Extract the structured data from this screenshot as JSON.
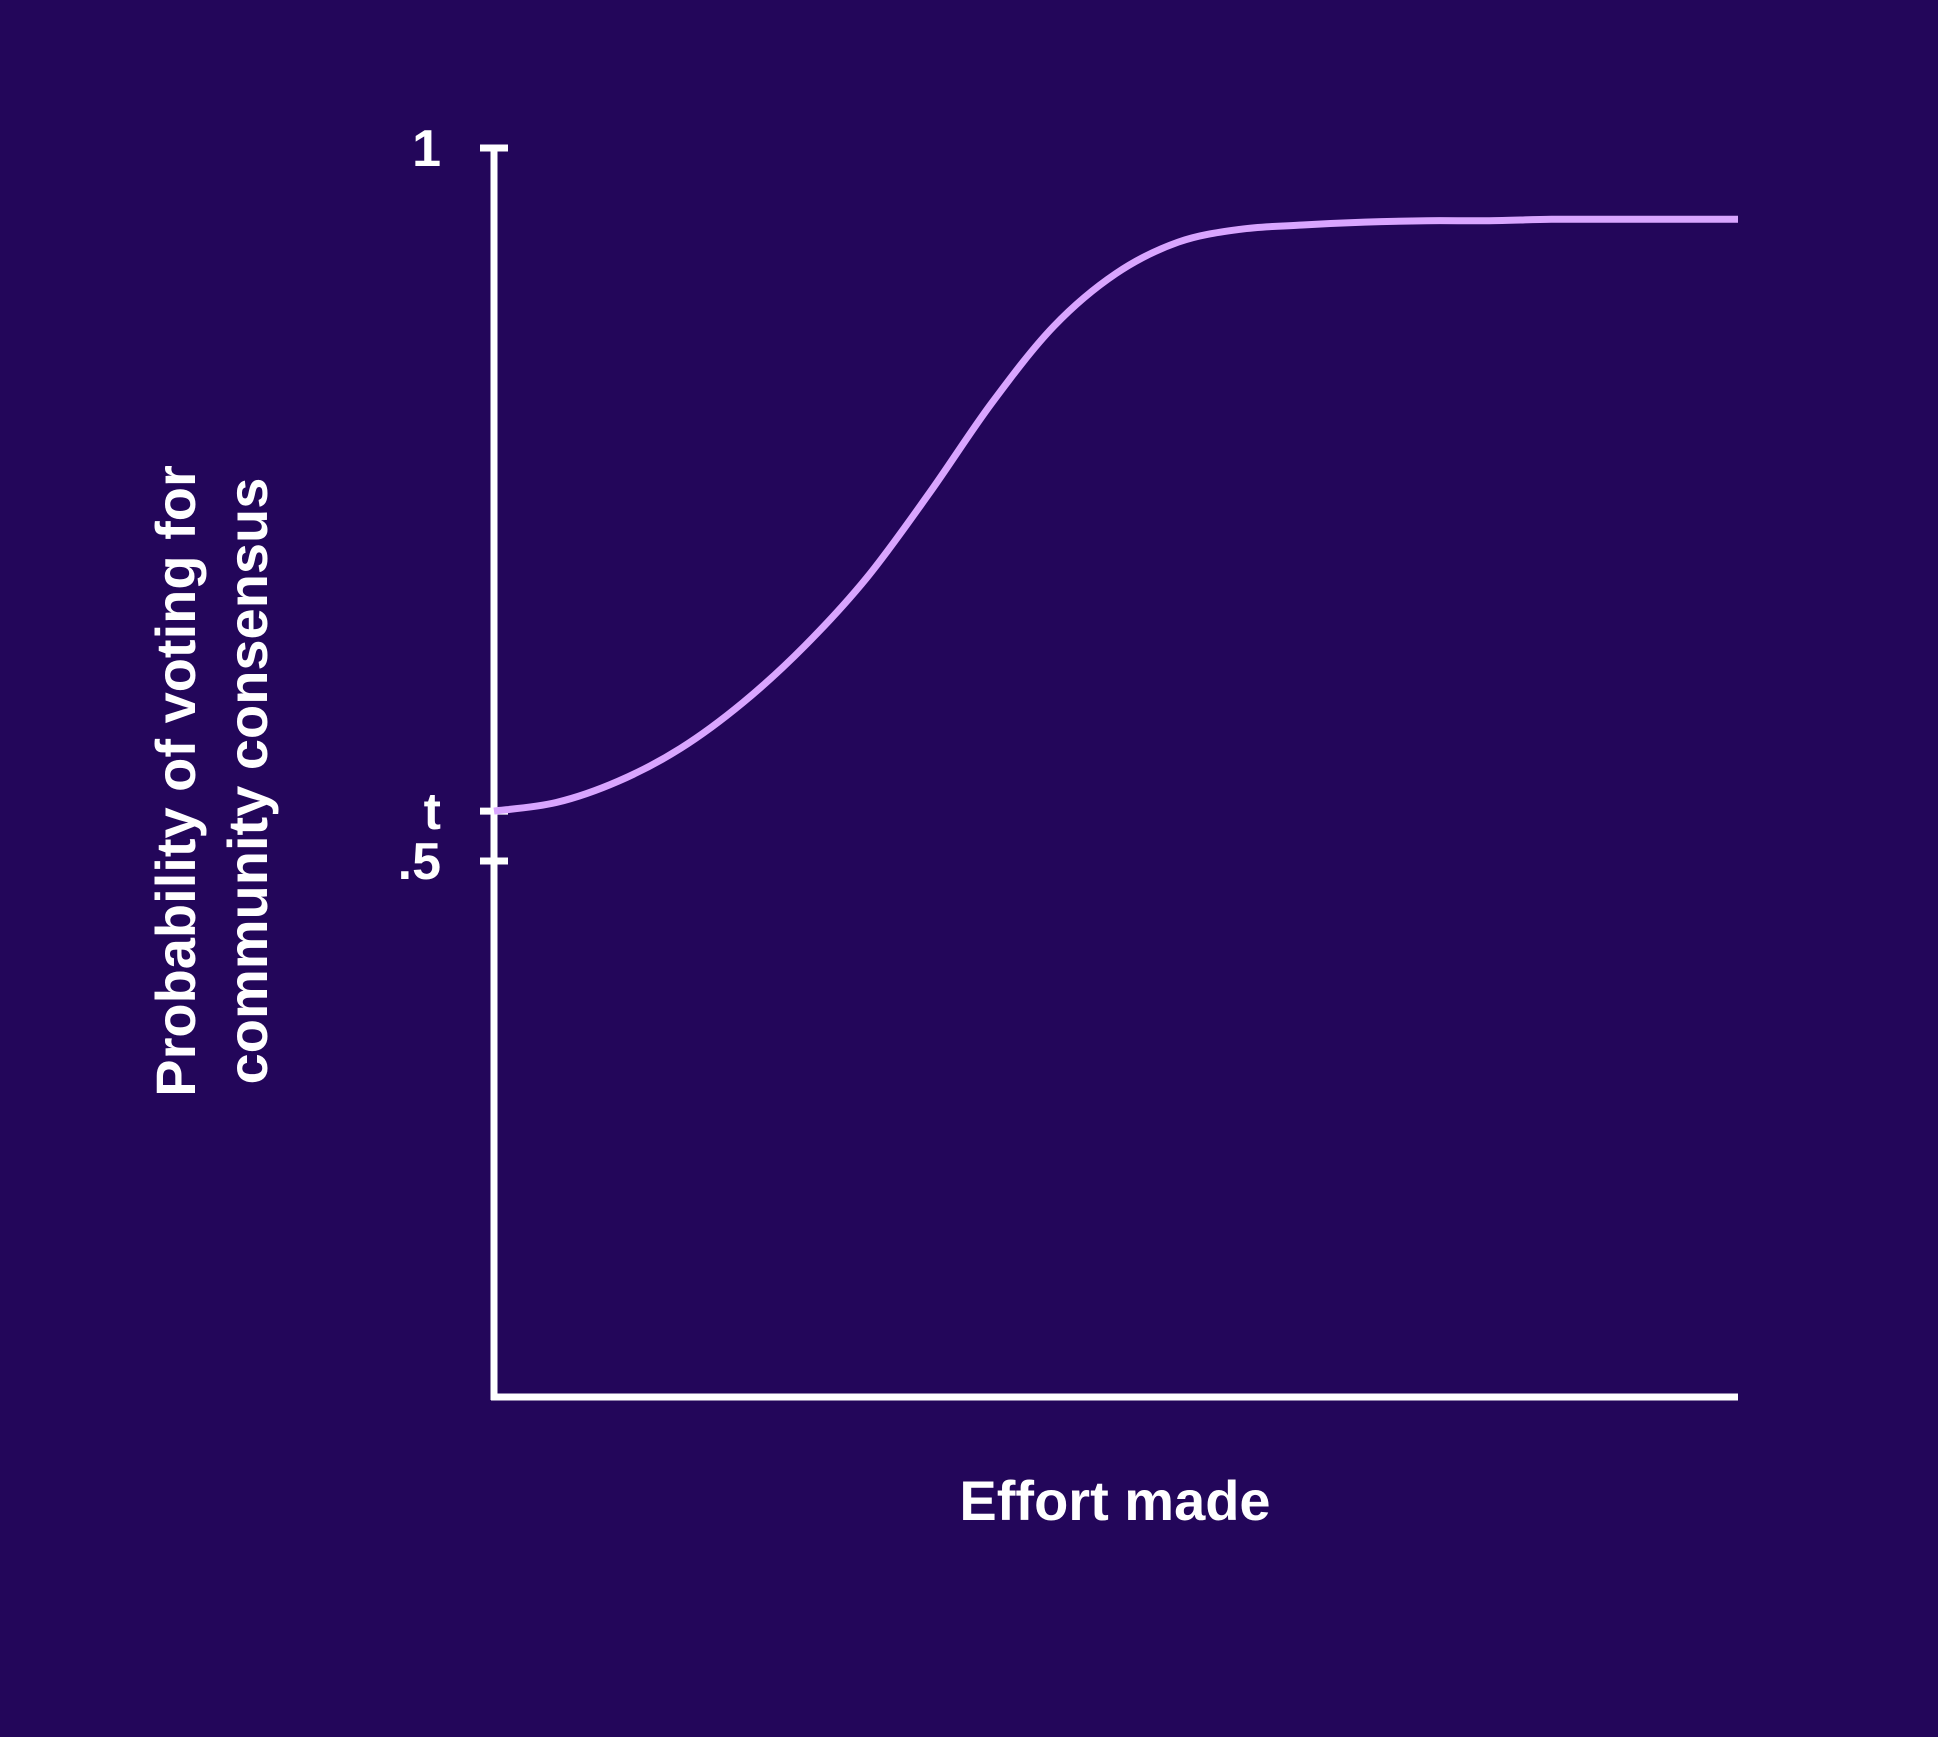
{
  "chart_data": {
    "type": "line",
    "xlabel": "Effort made",
    "ylabel_lines": [
      "Probability of voting for",
      "community consensus"
    ],
    "y_ticks": [
      {
        "label": "1",
        "value": 1.0
      },
      {
        "label": "t",
        "value": 0.535
      },
      {
        "label": ".5",
        "value": 0.5
      }
    ],
    "x_range": [
      0,
      1
    ],
    "y_range_visible_top": 1.0,
    "grid": false,
    "legend": "none",
    "series": [
      {
        "x": [
          0.0,
          0.05,
          0.1,
          0.15,
          0.2,
          0.25,
          0.3,
          0.35,
          0.4,
          0.45,
          0.5,
          0.55,
          0.6,
          0.65,
          0.7,
          0.75,
          0.8,
          0.85,
          0.9,
          0.95,
          1.0
        ],
        "y": [
          0.535,
          0.541,
          0.556,
          0.579,
          0.611,
          0.651,
          0.699,
          0.758,
          0.821,
          0.875,
          0.912,
          0.934,
          0.943,
          0.946,
          0.948,
          0.949,
          0.949,
          0.95,
          0.95,
          0.95,
          0.95
        ]
      }
    ],
    "colors": {
      "background": "#23065a",
      "axis": "#ffffff",
      "line": "#d9a5ff",
      "text": "#ffffff"
    }
  }
}
